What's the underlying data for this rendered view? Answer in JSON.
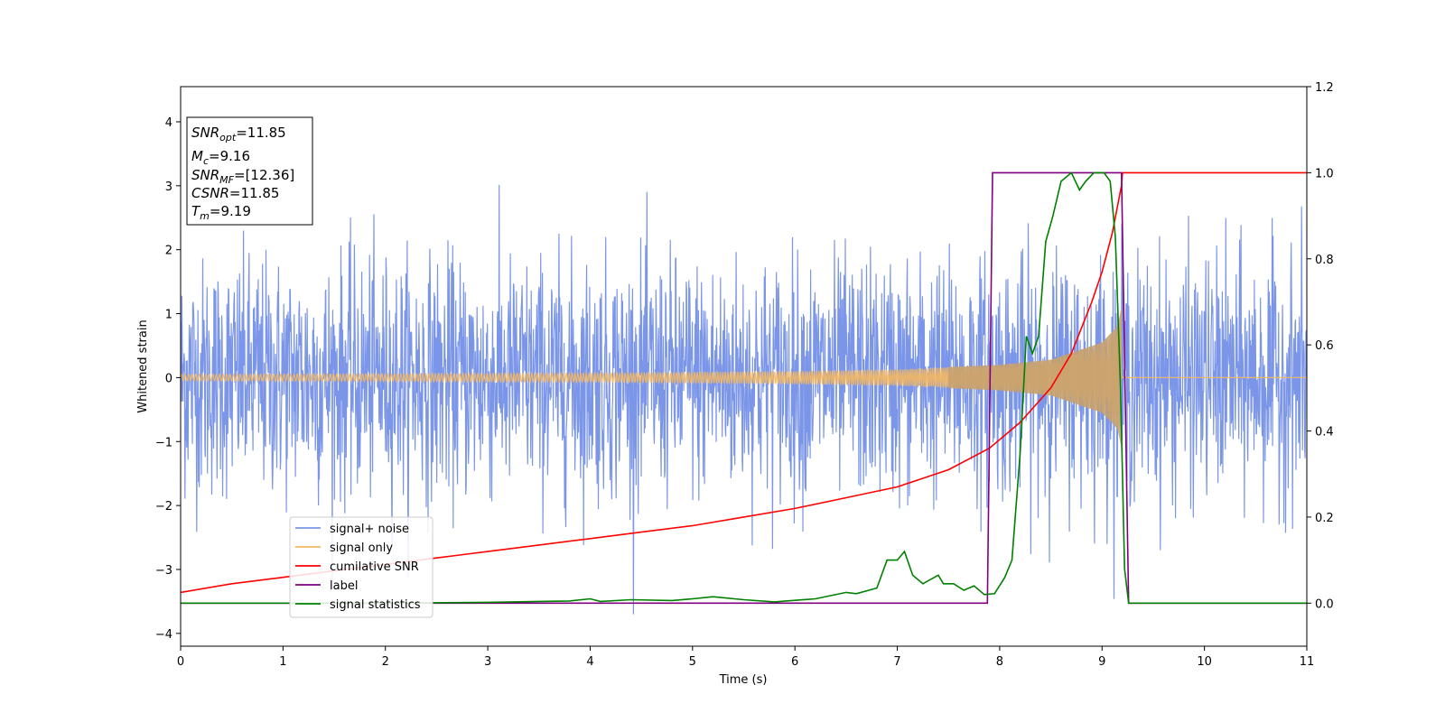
{
  "chart_data": {
    "type": "line",
    "xlabel": "Time (s)",
    "ylabel": "Whitened strain",
    "xlim": [
      0,
      11
    ],
    "ylim": [
      -4.2,
      4.55
    ],
    "y2lim": [
      -0.1,
      1.2
    ],
    "xticks": [
      "0",
      "1",
      "2",
      "3",
      "4",
      "5",
      "6",
      "7",
      "8",
      "9",
      "10",
      "11"
    ],
    "yticks": [
      "−4",
      "−3",
      "−2",
      "−1",
      "0",
      "1",
      "2",
      "3",
      "4"
    ],
    "y2ticks": [
      "0.0",
      "0.2",
      "0.4",
      "0.6",
      "0.8",
      "1.0",
      "1.2"
    ],
    "grid": false,
    "legend_position": "lower-left",
    "annotation": {
      "lines": [
        {
          "sym": "SNR",
          "sub": "opt",
          "value": "=11.85"
        },
        {
          "sym": "M",
          "sub": "c",
          "value": "=9.16"
        },
        {
          "sym": "SNR",
          "sub": "MF",
          "value": "=[12.36]"
        },
        {
          "sym": "CSNR",
          "sub": "",
          "value": "=11.85"
        },
        {
          "sym": "T",
          "sub": "m",
          "value": "=9.19"
        }
      ]
    },
    "series": [
      {
        "name": "signal+ noise",
        "color": "#7b96e8",
        "axis": "left",
        "description": "white noise, sigma ~0.9, spanning t=0..11"
      },
      {
        "name": "signal only",
        "color": "#f5b860",
        "axis": "left",
        "envelope": {
          "t": [
            0,
            2,
            4,
            6,
            7,
            8,
            8.5,
            9,
            9.15,
            9.19
          ],
          "amp": [
            0.05,
            0.06,
            0.07,
            0.1,
            0.13,
            0.2,
            0.28,
            0.55,
            0.8,
            1.1
          ]
        }
      },
      {
        "name": "cumilative SNR",
        "color": "#ff0000",
        "axis": "right",
        "x": [
          0,
          0.5,
          1,
          1.5,
          2,
          2.5,
          3,
          3.5,
          4,
          4.5,
          5,
          5.5,
          6,
          6.5,
          7,
          7.5,
          7.9,
          8.2,
          8.5,
          8.7,
          8.9,
          9.0,
          9.1,
          9.19,
          9.2,
          11
        ],
        "y": [
          0.025,
          0.045,
          0.06,
          0.075,
          0.09,
          0.105,
          0.12,
          0.135,
          0.15,
          0.165,
          0.18,
          0.2,
          0.22,
          0.245,
          0.27,
          0.31,
          0.36,
          0.42,
          0.5,
          0.58,
          0.7,
          0.77,
          0.86,
          0.97,
          1.0,
          1.0
        ]
      },
      {
        "name": "label",
        "color": "#800080",
        "axis": "right",
        "x": [
          0,
          7.88,
          7.93,
          9.19,
          9.26,
          11
        ],
        "y": [
          0,
          0,
          1,
          1,
          0,
          0
        ]
      },
      {
        "name": "signal statistics",
        "color": "#008000",
        "axis": "right",
        "x": [
          0,
          1,
          2,
          3,
          3.5,
          3.8,
          4.0,
          4.1,
          4.4,
          4.8,
          5.0,
          5.2,
          5.5,
          5.8,
          6.2,
          6.5,
          6.6,
          6.8,
          6.9,
          7.0,
          7.07,
          7.15,
          7.25,
          7.4,
          7.45,
          7.55,
          7.65,
          7.75,
          7.85,
          7.95,
          8.05,
          8.12,
          8.2,
          8.26,
          8.32,
          8.38,
          8.45,
          8.52,
          8.6,
          8.7,
          8.78,
          8.84,
          8.92,
          9.02,
          9.08,
          9.13,
          9.18,
          9.22,
          9.26,
          9.4,
          11
        ],
        "y": [
          0,
          0,
          0,
          0.002,
          0.004,
          0.005,
          0.01,
          0.004,
          0.008,
          0.006,
          0.01,
          0.015,
          0.008,
          0.003,
          0.01,
          0.025,
          0.022,
          0.035,
          0.1,
          0.1,
          0.12,
          0.065,
          0.045,
          0.065,
          0.045,
          0.045,
          0.03,
          0.04,
          0.02,
          0.022,
          0.06,
          0.1,
          0.35,
          0.62,
          0.58,
          0.62,
          0.84,
          0.9,
          0.98,
          1.0,
          0.96,
          0.98,
          1.0,
          1.0,
          0.98,
          0.85,
          0.5,
          0.08,
          0.0,
          0.0,
          0.0
        ]
      }
    ]
  }
}
